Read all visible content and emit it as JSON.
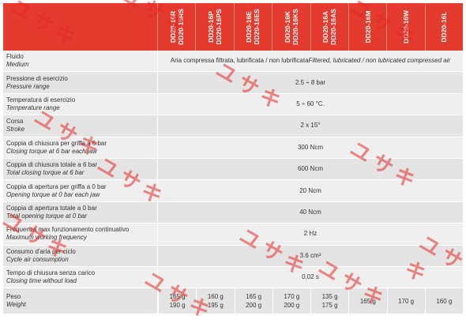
{
  "columns": [
    [
      "DD20-16R",
      "DD20-16RS"
    ],
    [
      "DD20-16P",
      "DD20-16PS"
    ],
    [
      "DD20-16E",
      "DD20-16ES"
    ],
    [
      "DD20-16K",
      "DD20-16KS"
    ],
    [
      "DD20-16A",
      "DD20-16AS"
    ],
    [
      "DD20-16M"
    ],
    [
      "DD20-16W"
    ],
    [
      "DD20-16L"
    ]
  ],
  "rows": [
    {
      "it": "Fluido",
      "en": "Medium",
      "value": "Aria compressa filtrata, lubrificata / non lubrificata\nFiltered, lubricated / non lubricated compressed air"
    },
    {
      "it": "Pressione di esercizio",
      "en": "Pressure range",
      "value": "2.5 ÷ 8 bar"
    },
    {
      "it": "Temperatura di esercizio",
      "en": "Temperature range",
      "value": "5 ÷ 60 °C."
    },
    {
      "it": "Corsa",
      "en": "Stroke",
      "value": "2 x 15°"
    },
    {
      "it": "Coppia di chiusura per griffa a 6 bar",
      "en": "Closing torque at 6 bar each jaw",
      "value": "300 Ncm"
    },
    {
      "it": "Coppia di chiusura totale a 6 bar",
      "en": "Total closing torque at 6 bar",
      "value": "600 Ncm"
    },
    {
      "it": "Coppia di apertura per griffa a 0 bar",
      "en": "Opening torque at 0 bar each jaw",
      "value": "20 Ncm"
    },
    {
      "it": "Coppia di apertura totale a 0 bar",
      "en": "Total opening torque at 0 bar",
      "value": "40 Ncm"
    },
    {
      "it": "Frequenza max funzionamento continuativo",
      "en": "Maximum working frequency",
      "value": "2 Hz"
    },
    {
      "it": "Consumo d'aria per ciclo",
      "en": "Cycle air consumption",
      "value": "3.6 cm³"
    },
    {
      "it": "Tempo di chiusura senza carico",
      "en": "Closing time without load",
      "value": "0.02 s"
    }
  ],
  "weight": {
    "it": "Peso",
    "en": "Weight",
    "values": [
      "165 g\n190 g",
      "160 g\n195 g",
      "165 g\n200 g",
      "170 g\n200 g",
      "135 g\n175 g",
      "165 g",
      "170 g",
      "160 g"
    ]
  },
  "watermark_text": "ユサキ"
}
